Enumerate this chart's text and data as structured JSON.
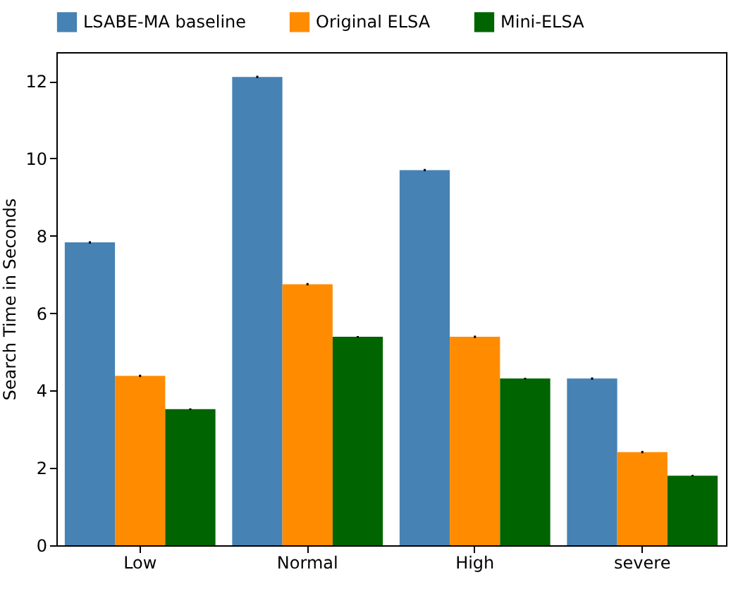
{
  "chart_data": {
    "type": "bar",
    "ylabel": "Search Time in Seconds",
    "categories": [
      "Low",
      "Normal",
      "High",
      "severe"
    ],
    "series": [
      {
        "name": "LSABE-MA baseline",
        "color": "#4682b4",
        "values": [
          7.83,
          12.11,
          9.7,
          4.31
        ],
        "errors": [
          0.03,
          0.03,
          0.03,
          0.03
        ]
      },
      {
        "name": "Original ELSA",
        "color": "#ff8c00",
        "values": [
          4.38,
          6.75,
          5.39,
          2.41
        ],
        "errors": [
          0.03,
          0.03,
          0.03,
          0.03
        ]
      },
      {
        "name": "Mini-ELSA",
        "color": "#006400",
        "values": [
          3.52,
          5.39,
          4.31,
          1.8
        ],
        "errors": [
          0.02,
          0.02,
          0.02,
          0.02
        ]
      }
    ],
    "ylim": [
      0,
      12.75
    ],
    "yticks": [
      0,
      2,
      4,
      6,
      8,
      10,
      12
    ],
    "grid": false,
    "legend": "top"
  }
}
